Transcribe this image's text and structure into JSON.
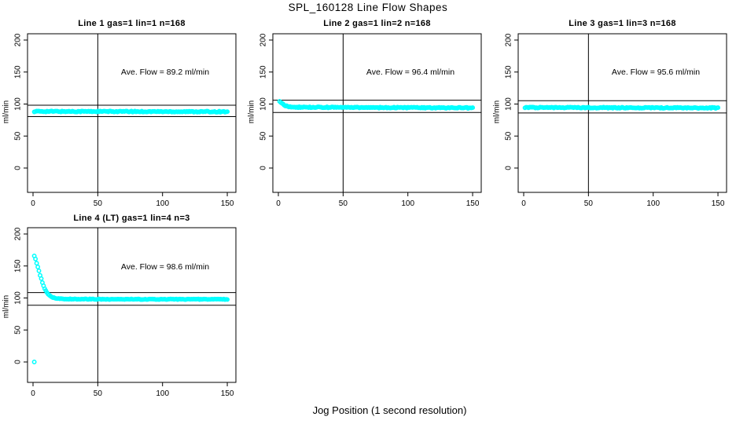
{
  "page": {
    "title": "SPL_160128  Line Flow Shapes",
    "xlabel": "Jog Position (1 second resolution)"
  },
  "colors": {
    "marker": "#00FFFF",
    "axis": "#000000",
    "background": "#FFFFFF"
  },
  "chart_data": [
    {
      "type": "scatter",
      "title": "Line 1 gas=1 lin=1 n=168",
      "annotation": "Ave. Flow =  89.2  ml/min",
      "ave_flow": 89.2,
      "n_label": 168,
      "markers_n": 168,
      "ylabel": "ml/min",
      "x_ticks": [
        0,
        50,
        100,
        150
      ],
      "y_ticks": [
        0,
        50,
        100,
        150,
        200
      ],
      "xlim": [
        -4,
        156
      ],
      "ylim": [
        -38,
        210
      ],
      "ref_vline_x": 50,
      "ref_hlines": [
        98.1,
        80.3
      ],
      "noise": 0.8,
      "profile_keypoints": [
        [
          1,
          88.5
        ],
        [
          150,
          88.0
        ]
      ],
      "extra_points": []
    },
    {
      "type": "scatter",
      "title": "Line 2 gas=1 lin=2 n=168",
      "annotation": "Ave. Flow =  96.4  ml/min",
      "ave_flow": 96.4,
      "n_label": 168,
      "markers_n": 168,
      "ylabel": "ml/min",
      "x_ticks": [
        0,
        50,
        100,
        150
      ],
      "y_ticks": [
        0,
        50,
        100,
        150,
        200
      ],
      "xlim": [
        -4,
        156
      ],
      "ylim": [
        -38,
        210
      ],
      "ref_vline_x": 50,
      "ref_hlines": [
        106.0,
        86.8
      ],
      "noise": 0.8,
      "profile_keypoints": [
        [
          1,
          104
        ],
        [
          2,
          102
        ],
        [
          4,
          99
        ],
        [
          6,
          97
        ],
        [
          9,
          95.5
        ],
        [
          15,
          95
        ],
        [
          60,
          94.5
        ],
        [
          150,
          94
        ]
      ],
      "extra_points": []
    },
    {
      "type": "scatter",
      "title": "Line 3 gas=1 lin=3 n=168",
      "annotation": "Ave. Flow =  95.6  ml/min",
      "ave_flow": 95.6,
      "n_label": 168,
      "markers_n": 168,
      "ylabel": "ml/min",
      "x_ticks": [
        0,
        50,
        100,
        150
      ],
      "y_ticks": [
        0,
        50,
        100,
        150,
        200
      ],
      "xlim": [
        -4,
        156
      ],
      "ylim": [
        -38,
        210
      ],
      "ref_vline_x": 50,
      "ref_hlines": [
        105.2,
        86.0
      ],
      "noise": 0.8,
      "profile_keypoints": [
        [
          1,
          94.5
        ],
        [
          150,
          94.0
        ]
      ],
      "extra_points": []
    },
    {
      "type": "scatter",
      "title": "Line 4 (LT) gas=1 lin=4 n=3",
      "annotation": "Ave. Flow =  98.6  ml/min",
      "ave_flow": 98.6,
      "n_label": 3,
      "markers_n": 168,
      "ylabel": "ml/min",
      "x_ticks": [
        0,
        50,
        100,
        150
      ],
      "y_ticks": [
        0,
        50,
        100,
        150,
        200
      ],
      "xlim": [
        -4,
        156
      ],
      "ylim": [
        -32,
        210
      ],
      "ref_vline_x": 50,
      "ref_hlines": [
        108.5,
        88.7
      ],
      "noise": 0.5,
      "profile_keypoints": [
        [
          1,
          166
        ],
        [
          2,
          160
        ],
        [
          3,
          153
        ],
        [
          4,
          146
        ],
        [
          5,
          139
        ],
        [
          6,
          132
        ],
        [
          7,
          126
        ],
        [
          8,
          120
        ],
        [
          9,
          115
        ],
        [
          10,
          111
        ],
        [
          11,
          108
        ],
        [
          12,
          105.5
        ],
        [
          13,
          103.5
        ],
        [
          14,
          102
        ],
        [
          15,
          101
        ],
        [
          16,
          100.5
        ],
        [
          18,
          99.5
        ],
        [
          20,
          99
        ],
        [
          24,
          98.5
        ],
        [
          30,
          98.3
        ],
        [
          60,
          98
        ],
        [
          150,
          98
        ]
      ],
      "extra_points": [
        [
          1,
          0
        ]
      ]
    }
  ]
}
